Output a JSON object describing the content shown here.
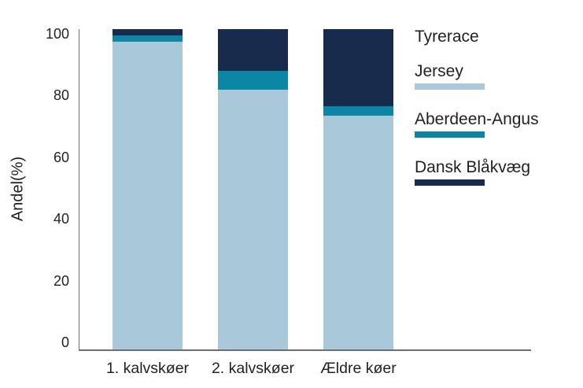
{
  "chart_data": {
    "type": "bar",
    "stacked": true,
    "ylabel": "Andel(%)",
    "categories": [
      "1. kalvskøer",
      "2. kalvskøer",
      "Ældre køer"
    ],
    "series": [
      {
        "name": "Jersey",
        "color": "#a9c9da",
        "values": [
          96,
          81,
          73
        ]
      },
      {
        "name": "Aberdeen-Angus",
        "color": "#0b87a5",
        "values": [
          2,
          6,
          3
        ]
      },
      {
        "name": "Dansk Blåkvæg",
        "color": "#182b4d",
        "values": [
          2,
          13,
          24
        ]
      }
    ],
    "legend_title": "Tyrerace",
    "legend_position": "right",
    "yticks": [
      0,
      20,
      40,
      60,
      80,
      100
    ],
    "ylim": [
      0,
      102
    ],
    "grid": false,
    "units": "%"
  },
  "colors": {
    "text": "#231f20",
    "axis": "#6d6e71",
    "background": "#ffffff"
  }
}
